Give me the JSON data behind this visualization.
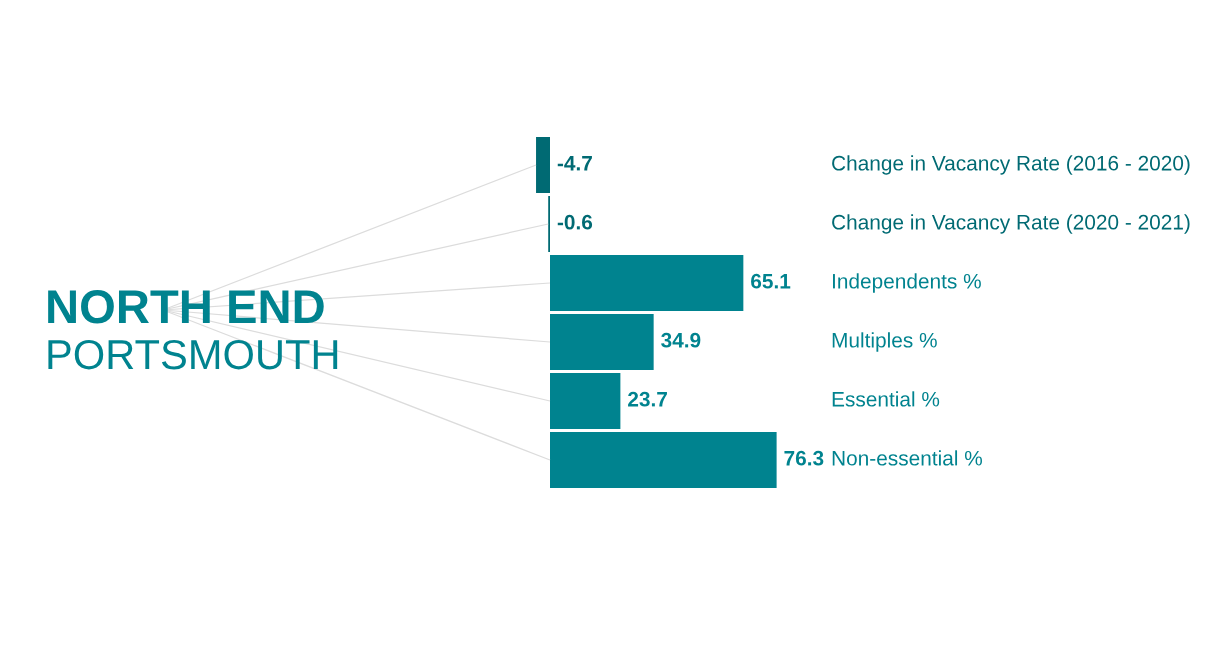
{
  "chart_data": {
    "type": "bar",
    "title": "NORTH END",
    "subtitle": "PORTSMOUTH",
    "orientation": "horizontal",
    "data_labels": true,
    "categories": [
      "Change in Vacancy Rate (2016 - 2020)",
      "Change in Vacancy Rate (2020 - 2021)",
      "Independents %",
      "Multiples %",
      "Essential %",
      "Non-essential %"
    ],
    "values": [
      -4.7,
      -0.6,
      65.1,
      34.9,
      23.7,
      76.3
    ],
    "colors": [
      "#006a73",
      "#006a73",
      "#00838f",
      "#00838f",
      "#00838f",
      "#00838f"
    ]
  }
}
